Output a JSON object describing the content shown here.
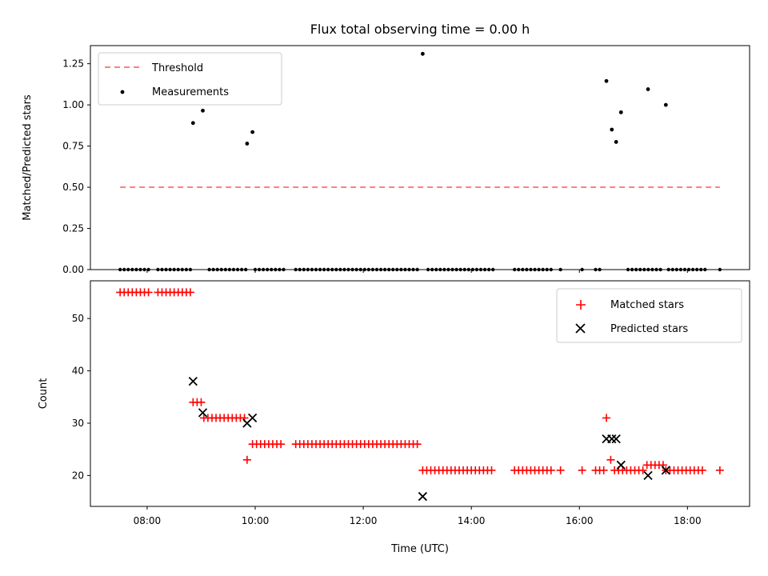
{
  "title": "Flux total observing time = 0.00 h",
  "chart_data": [
    {
      "type": "scatter",
      "ylabel": "Matched/Predicted stars",
      "xlim": [
        6.95,
        19.15
      ],
      "ylim": [
        0,
        1.36
      ],
      "yticks": [
        0.0,
        0.25,
        0.5,
        0.75,
        1.0,
        1.25
      ],
      "ytick_labels": [
        "0.00",
        "0.25",
        "0.50",
        "0.75",
        "1.00",
        "1.25"
      ],
      "legend_position": "top-left",
      "legend": [
        "Threshold",
        "Measurements"
      ],
      "threshold": {
        "name": "Threshold",
        "y": 0.5,
        "x_range": [
          7.5,
          18.6
        ],
        "color": "#ff7f7f",
        "style": "dashed"
      },
      "measurements": {
        "name": "Measurements",
        "color": "#000000",
        "points": [
          [
            8.85,
            0.89
          ],
          [
            9.03,
            0.965
          ],
          [
            9.85,
            0.765
          ],
          [
            9.95,
            0.835
          ],
          [
            13.1,
            1.31
          ],
          [
            16.5,
            1.145
          ],
          [
            16.6,
            0.85
          ],
          [
            16.68,
            0.775
          ],
          [
            16.77,
            0.955
          ],
          [
            17.27,
            1.095
          ],
          [
            17.6,
            1.0
          ]
        ],
        "zero_runs": [
          [
            7.5,
            8.05
          ],
          [
            8.2,
            8.8
          ],
          [
            9.15,
            9.8
          ],
          [
            10.0,
            10.55
          ],
          [
            10.75,
            13.0
          ],
          [
            13.2,
            14.4
          ],
          [
            14.8,
            15.45
          ],
          [
            15.65,
            15.65
          ],
          [
            16.05,
            16.05
          ],
          [
            16.3,
            16.4
          ],
          [
            16.9,
            17.5
          ],
          [
            17.65,
            18.3
          ],
          [
            18.6,
            18.6
          ]
        ],
        "zero_step": 0.075
      }
    },
    {
      "type": "scatter",
      "xlabel": "Time (UTC)",
      "ylabel": "Count",
      "xlim": [
        6.95,
        19.15
      ],
      "ylim": [
        14.1,
        57.2
      ],
      "xticks": [
        8,
        10,
        12,
        14,
        16,
        18
      ],
      "xtick_labels": [
        "08:00",
        "10:00",
        "12:00",
        "14:00",
        "16:00",
        "18:00"
      ],
      "yticks": [
        20,
        30,
        40,
        50
      ],
      "ytick_labels": [
        "20",
        "30",
        "40",
        "50"
      ],
      "legend_position": "top-right",
      "legend": [
        "Matched stars",
        "Predicted stars"
      ],
      "matched": {
        "name": "Matched stars",
        "color": "#ff0000",
        "marker": "+",
        "runs": [
          {
            "x": [
              7.5,
              8.05
            ],
            "y": 55
          },
          {
            "x": [
              8.2,
              8.8
            ],
            "y": 55
          },
          {
            "x": [
              8.85,
              9.0
            ],
            "y": 34
          },
          {
            "x": [
              9.05,
              9.8
            ],
            "y": 31
          },
          {
            "x": [
              9.85,
              9.85
            ],
            "y": 23
          },
          {
            "x": [
              9.95,
              10.5
            ],
            "y": 26
          },
          {
            "x": [
              10.75,
              13.0
            ],
            "y": 26
          },
          {
            "x": [
              13.1,
              14.4
            ],
            "y": 21
          },
          {
            "x": [
              14.8,
              15.45
            ],
            "y": 21
          },
          {
            "x": [
              15.65,
              15.65
            ],
            "y": 21
          },
          {
            "x": [
              16.05,
              16.05
            ],
            "y": 21
          },
          {
            "x": [
              16.3,
              16.45
            ],
            "y": 21
          },
          {
            "x": [
              16.5,
              16.5
            ],
            "y": 31
          },
          {
            "x": [
              16.58,
              16.58
            ],
            "y": 23
          },
          {
            "x": [
              16.65,
              17.2
            ],
            "y": 21
          },
          {
            "x": [
              17.25,
              17.55
            ],
            "y": 22
          },
          {
            "x": [
              17.6,
              18.3
            ],
            "y": 21
          },
          {
            "x": [
              18.6,
              18.6
            ],
            "y": 21
          }
        ],
        "step": 0.075
      },
      "predicted": {
        "name": "Predicted stars",
        "color": "#000000",
        "marker": "x",
        "points": [
          [
            8.85,
            38
          ],
          [
            9.03,
            32
          ],
          [
            9.85,
            30
          ],
          [
            9.95,
            31
          ],
          [
            13.1,
            16
          ],
          [
            16.5,
            27
          ],
          [
            16.6,
            27
          ],
          [
            16.68,
            27
          ],
          [
            16.77,
            22
          ],
          [
            17.27,
            20
          ],
          [
            17.6,
            21
          ]
        ]
      }
    }
  ]
}
